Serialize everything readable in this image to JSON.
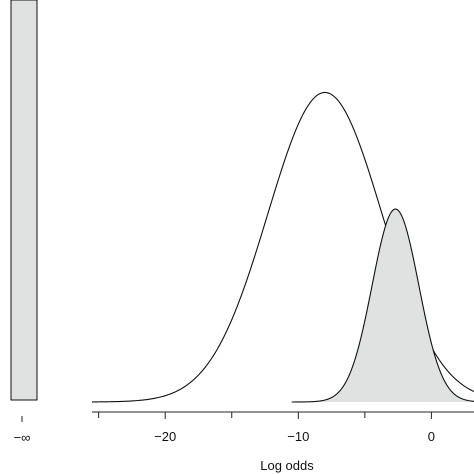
{
  "chart_data": {
    "type": "area",
    "title": "",
    "xlabel": "Log odds",
    "ylabel": "",
    "xlim": [
      -25.5,
      3.2
    ],
    "ylim": [
      0,
      1
    ],
    "x_ticks": [
      -20,
      -10,
      0
    ],
    "x_tick_labels": [
      "−20",
      "−10",
      "0"
    ],
    "neg_inf_label": "−∞",
    "grid": false,
    "legend": "none",
    "colors": {
      "fill": "#e0e2e2",
      "stroke": "#111111",
      "background": "#ffffff"
    },
    "point_mass": {
      "x_label": "−∞",
      "height": 1.0,
      "filled": true
    },
    "series": [
      {
        "distribution": "normal",
        "mean": -8.0,
        "sd": 4.3,
        "peak": 0.77,
        "x_range": [
          -25.5,
          3.2
        ],
        "filled": false
      },
      {
        "distribution": "normal",
        "mean": -2.7,
        "sd": 1.75,
        "peak": 0.48,
        "x_range": [
          -10.5,
          3.2
        ],
        "filled": true
      }
    ]
  }
}
